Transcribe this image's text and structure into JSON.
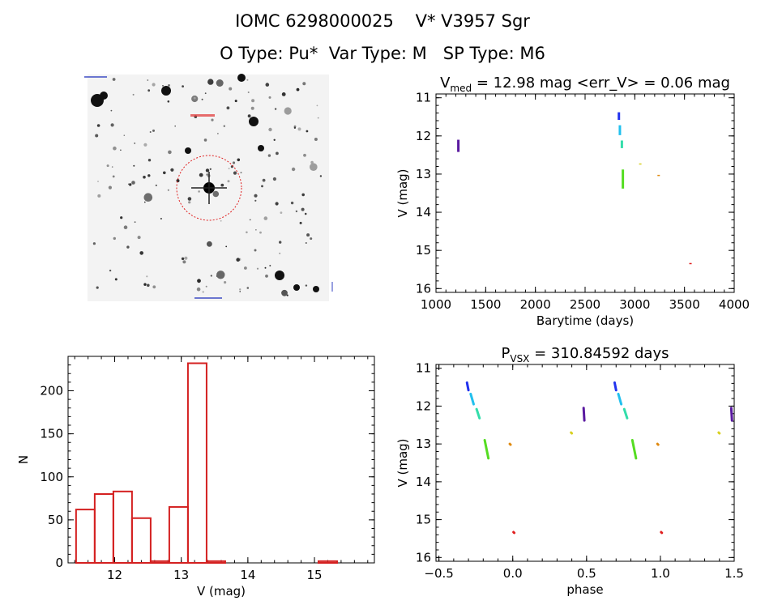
{
  "header": {
    "title": "IOMC 6298000025    V* V3957 Sgr",
    "subtitle": "O Type: Pu*  Var Type: M   SP Type: M6"
  },
  "chart_data": [
    {
      "type": "image",
      "title": "",
      "content": "finder chart (star field) with red circle marking the target star"
    },
    {
      "type": "scatter",
      "title": "V_med = 12.98 mag <err_V> = 0.06 mag",
      "title_parts": {
        "v": "V",
        "sub": "med",
        "rest": " = 12.98 mag <err_V> = 0.06 mag"
      },
      "xlabel": "Barytime (days)",
      "ylabel": "V (mag)",
      "xlim": [
        1000,
        4000
      ],
      "ylim": [
        16.1,
        10.9
      ],
      "y_inverted": true,
      "xticks": [
        1000,
        1500,
        2000,
        2500,
        3000,
        3500,
        4000
      ],
      "yticks": [
        11,
        12,
        13,
        14,
        15,
        16
      ],
      "groups": [
        {
          "color": "#5a1aa0",
          "x": 1225,
          "y": [
            12.1,
            12.42
          ]
        },
        {
          "color": "#2233ee",
          "x": 2840,
          "y": [
            11.38,
            11.58
          ]
        },
        {
          "color": "#22c0ee",
          "x": 2850,
          "y": [
            11.72,
            11.98
          ]
        },
        {
          "color": "#33ddaa",
          "x": 2870,
          "y": [
            12.12,
            12.32
          ]
        },
        {
          "color": "#55dd22",
          "x": 2880,
          "y": [
            12.88,
            13.38
          ]
        },
        {
          "color": "#d8d020",
          "x": 3055,
          "y": [
            12.72,
            12.73
          ]
        },
        {
          "color": "#e08a10",
          "x": 3240,
          "y": [
            13.02,
            13.05
          ]
        },
        {
          "color": "#e02020",
          "x": 3560,
          "y": [
            15.33,
            15.35
          ]
        }
      ]
    },
    {
      "type": "bar",
      "title": "",
      "xlabel": "V (mag)",
      "ylabel": "N",
      "xlim": [
        11.3,
        15.9
      ],
      "ylim": [
        0,
        240
      ],
      "xticks": [
        12,
        13,
        14,
        15
      ],
      "yticks": [
        0,
        50,
        100,
        150,
        200
      ],
      "bin_width": 0.28,
      "bin_starts": [
        11.42,
        11.7,
        11.98,
        12.26,
        12.54,
        12.82,
        13.1,
        13.38,
        15.06
      ],
      "values": [
        62,
        80,
        83,
        52,
        2,
        65,
        232,
        2,
        2
      ]
    },
    {
      "type": "scatter",
      "title": "P_vsx = 310.84592 days",
      "title_parts": {
        "v": "P",
        "sub": "VSX",
        "rest": " = 310.84592 days"
      },
      "xlabel": "phase",
      "ylabel": "V (mag)",
      "xlim": [
        -0.52,
        1.5
      ],
      "ylim": [
        16.1,
        10.9
      ],
      "y_inverted": true,
      "xticks": [
        -0.5,
        0.0,
        0.5,
        1.0,
        1.5
      ],
      "xtick_labels": [
        "−0.5",
        "0.0",
        "0.5",
        "1.0",
        "1.5"
      ],
      "yticks": [
        11,
        12,
        13,
        14,
        15,
        16
      ],
      "groups": [
        {
          "color": "#5a1aa0",
          "x": [
            0.48,
            0.485
          ],
          "y": [
            12.05,
            12.38
          ]
        },
        {
          "color": "#2233ee",
          "x": [
            -0.31,
            -0.3
          ],
          "y": [
            11.38,
            11.58
          ]
        },
        {
          "color": "#22c0ee",
          "x": [
            -0.285,
            -0.265
          ],
          "y": [
            11.68,
            11.95
          ]
        },
        {
          "color": "#33ddaa",
          "x": [
            -0.245,
            -0.225
          ],
          "y": [
            12.08,
            12.32
          ]
        },
        {
          "color": "#55dd22",
          "x": [
            -0.19,
            -0.165
          ],
          "y": [
            12.9,
            13.38
          ]
        },
        {
          "color": "#d8d020",
          "x": [
            0.395,
            0.4
          ],
          "y": [
            12.7,
            12.72
          ]
        },
        {
          "color": "#e08a10",
          "x": [
            -0.02,
            -0.015
          ],
          "y": [
            13.0,
            13.02
          ]
        },
        {
          "color": "#e02020",
          "x": [
            0.005,
            0.01
          ],
          "y": [
            15.33,
            15.35
          ]
        }
      ]
    }
  ]
}
